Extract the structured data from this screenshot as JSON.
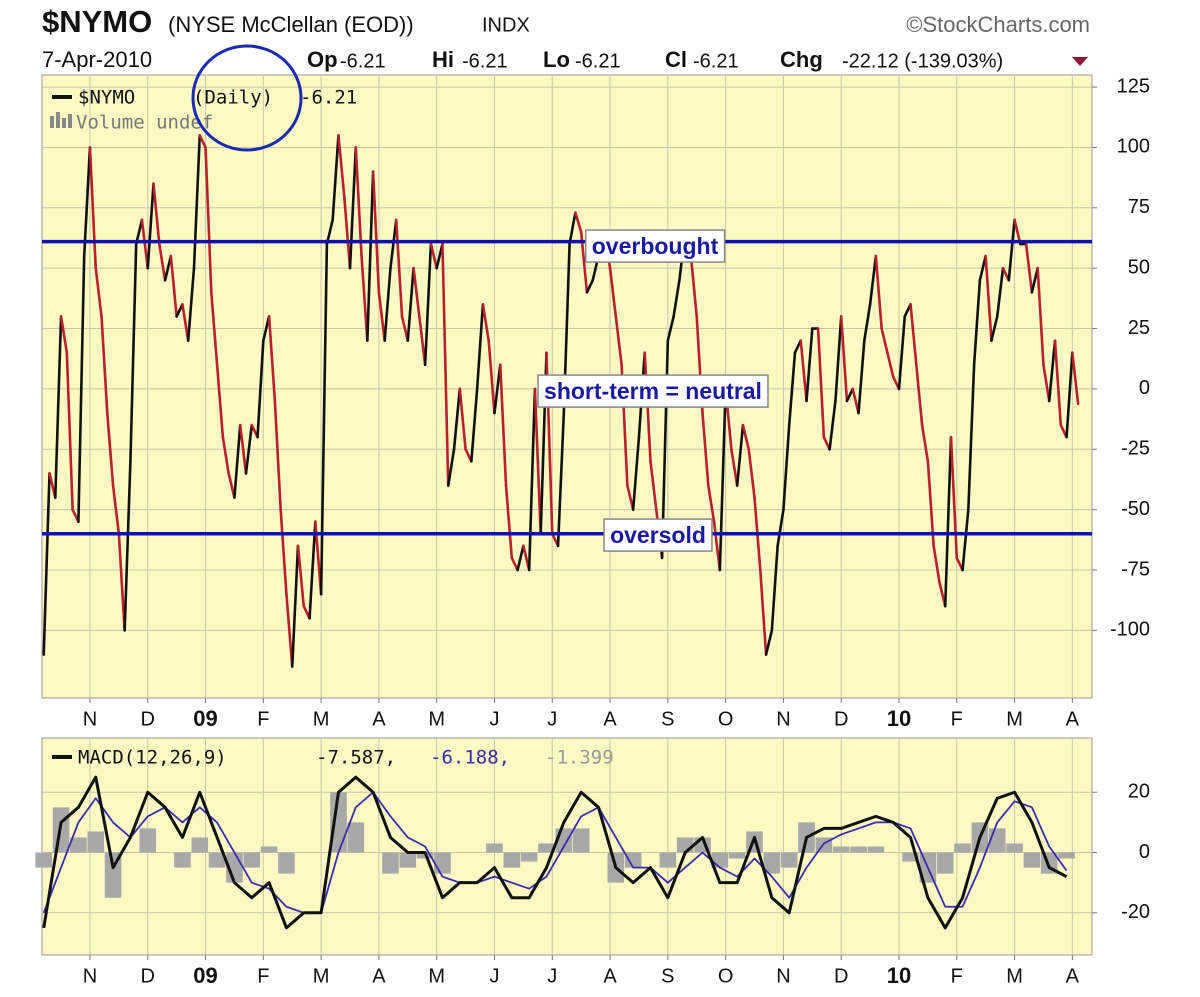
{
  "chart_data": [
    {
      "type": "line",
      "title": "$NYMO",
      "subtitle": "(NYSE McClellan (EOD))",
      "exchange": "INDX",
      "source": "©StockCharts.com",
      "date": "7-Apr-2010",
      "quote": [
        {
          "label": "Op",
          "value": "-6.21"
        },
        {
          "label": "Hi",
          "value": "-6.21"
        },
        {
          "label": "Lo",
          "value": "-6.21"
        },
        {
          "label": "Cl",
          "value": "-6.21"
        },
        {
          "label": "Chg",
          "value": "-22.12 (-139.03%)"
        }
      ],
      "legend": {
        "symbol": "$NYMO",
        "period": "(Daily)",
        "last": "-6.21",
        "volume": "Volume undef"
      },
      "xlim": [
        0.17,
        18.34
      ],
      "xticks": [
        {
          "value": 1,
          "label": "N"
        },
        {
          "value": 2,
          "label": "D"
        },
        {
          "value": 3,
          "label": "09"
        },
        {
          "value": 4,
          "label": "F"
        },
        {
          "value": 5,
          "label": "M"
        },
        {
          "value": 6,
          "label": "A"
        },
        {
          "value": 7,
          "label": "M"
        },
        {
          "value": 8,
          "label": "J"
        },
        {
          "value": 9,
          "label": "J"
        },
        {
          "value": 10,
          "label": "A"
        },
        {
          "value": 11,
          "label": "S"
        },
        {
          "value": 12,
          "label": "O"
        },
        {
          "value": 13,
          "label": "N"
        },
        {
          "value": 14,
          "label": "D"
        },
        {
          "value": 15,
          "label": "10"
        },
        {
          "value": 16,
          "label": "F"
        },
        {
          "value": 17,
          "label": "M"
        },
        {
          "value": 18,
          "label": "A"
        }
      ],
      "ylim": [
        -128,
        130
      ],
      "yticks": [
        125,
        100,
        75,
        50,
        25,
        0,
        -25,
        -50,
        -75,
        -100
      ],
      "grid": true,
      "up_color": "#111111",
      "down_color": "#b8202a",
      "hlines": [
        {
          "y": 61,
          "label": "overbought"
        },
        {
          "y": -60,
          "label": "oversold"
        }
      ],
      "annotation": "short-term = neutral",
      "x": [
        0.2,
        0.3,
        0.4,
        0.5,
        0.6,
        0.7,
        0.8,
        0.9,
        1.0,
        1.1,
        1.2,
        1.3,
        1.4,
        1.5,
        1.6,
        1.7,
        1.8,
        1.9,
        2.0,
        2.1,
        2.2,
        2.3,
        2.4,
        2.5,
        2.6,
        2.7,
        2.8,
        2.9,
        3.0,
        3.1,
        3.2,
        3.3,
        3.4,
        3.5,
        3.6,
        3.7,
        3.8,
        3.9,
        4.0,
        4.1,
        4.2,
        4.3,
        4.4,
        4.5,
        4.6,
        4.7,
        4.8,
        4.9,
        5.0,
        5.1,
        5.2,
        5.3,
        5.4,
        5.5,
        5.6,
        5.7,
        5.8,
        5.9,
        6.0,
        6.1,
        6.2,
        6.3,
        6.4,
        6.5,
        6.6,
        6.7,
        6.8,
        6.9,
        7.0,
        7.1,
        7.2,
        7.3,
        7.4,
        7.5,
        7.6,
        7.7,
        7.8,
        7.9,
        8.0,
        8.1,
        8.2,
        8.3,
        8.4,
        8.5,
        8.6,
        8.7,
        8.8,
        8.9,
        9.0,
        9.1,
        9.2,
        9.3,
        9.4,
        9.5,
        9.6,
        9.7,
        9.8,
        9.9,
        10.0,
        10.1,
        10.2,
        10.3,
        10.4,
        10.5,
        10.6,
        10.7,
        10.8,
        10.9,
        11.0,
        11.1,
        11.2,
        11.3,
        11.4,
        11.5,
        11.6,
        11.7,
        11.8,
        11.9,
        12.0,
        12.1,
        12.2,
        12.3,
        12.4,
        12.5,
        12.6,
        12.7,
        12.8,
        12.9,
        13.0,
        13.1,
        13.2,
        13.3,
        13.4,
        13.5,
        13.6,
        13.7,
        13.8,
        13.9,
        14.0,
        14.1,
        14.2,
        14.3,
        14.4,
        14.5,
        14.6,
        14.7,
        14.8,
        14.9,
        15.0,
        15.1,
        15.2,
        15.3,
        15.4,
        15.5,
        15.6,
        15.7,
        15.8,
        15.9,
        16.0,
        16.1,
        16.2,
        16.3,
        16.4,
        16.5,
        16.6,
        16.7,
        16.8,
        16.9,
        17.0,
        17.1,
        17.2,
        17.3,
        17.4,
        17.5,
        17.6,
        17.7,
        17.8,
        17.9,
        18.0,
        18.1
      ],
      "values": [
        -110,
        -35,
        -45,
        30,
        15,
        -50,
        -55,
        55,
        100,
        50,
        30,
        -10,
        -40,
        -60,
        -100,
        -30,
        60,
        70,
        50,
        85,
        60,
        45,
        55,
        30,
        35,
        20,
        50,
        105,
        100,
        40,
        10,
        -20,
        -35,
        -45,
        -15,
        -35,
        -15,
        -20,
        20,
        30,
        -5,
        -50,
        -85,
        -115,
        -65,
        -90,
        -95,
        -55,
        -85,
        60,
        70,
        105,
        80,
        50,
        100,
        55,
        20,
        90,
        40,
        20,
        50,
        70,
        30,
        20,
        50,
        30,
        10,
        60,
        50,
        60,
        -40,
        -25,
        0,
        -25,
        -30,
        0,
        35,
        20,
        -10,
        10,
        -40,
        -70,
        -75,
        -65,
        -75,
        0,
        -60,
        15,
        -60,
        -65,
        -10,
        60,
        73,
        65,
        40,
        45,
        55,
        65,
        50,
        30,
        10,
        -40,
        -50,
        -20,
        15,
        -30,
        -50,
        -70,
        20,
        30,
        45,
        65,
        55,
        30,
        -10,
        -40,
        -55,
        -75,
        0,
        -25,
        -40,
        -15,
        -25,
        -45,
        -75,
        -110,
        -100,
        -65,
        -50,
        -15,
        15,
        20,
        -5,
        25,
        25,
        -20,
        -25,
        -5,
        30,
        -5,
        0,
        -10,
        20,
        35,
        55,
        25,
        15,
        5,
        0,
        30,
        35,
        10,
        -15,
        -30,
        -65,
        -80,
        -90,
        -20,
        -70,
        -75,
        -50,
        10,
        45,
        55,
        20,
        30,
        50,
        45,
        70,
        60,
        60,
        40,
        50,
        10,
        -5,
        20,
        -15,
        -20,
        15,
        -6.21
      ]
    },
    {
      "type": "macd",
      "legend": {
        "label": "MACD(12,26,9)",
        "macd": "-7.587,",
        "signal": "-6.188,",
        "histogram": "-1.399"
      },
      "xlim": [
        0.17,
        18.34
      ],
      "xticks": [
        {
          "value": 1,
          "label": "N"
        },
        {
          "value": 2,
          "label": "D"
        },
        {
          "value": 3,
          "label": "09"
        },
        {
          "value": 4,
          "label": "F"
        },
        {
          "value": 5,
          "label": "M"
        },
        {
          "value": 6,
          "label": "A"
        },
        {
          "value": 7,
          "label": "M"
        },
        {
          "value": 8,
          "label": "J"
        },
        {
          "value": 9,
          "label": "J"
        },
        {
          "value": 10,
          "label": "A"
        },
        {
          "value": 11,
          "label": "S"
        },
        {
          "value": 12,
          "label": "O"
        },
        {
          "value": 13,
          "label": "N"
        },
        {
          "value": 14,
          "label": "D"
        },
        {
          "value": 15,
          "label": "10"
        },
        {
          "value": 16,
          "label": "F"
        },
        {
          "value": 17,
          "label": "M"
        },
        {
          "value": 18,
          "label": "A"
        }
      ],
      "ylim": [
        -34,
        38
      ],
      "yticks": [
        20,
        0,
        -20
      ],
      "grid": true,
      "x": [
        0.2,
        0.5,
        0.8,
        1.1,
        1.4,
        1.7,
        2.0,
        2.3,
        2.6,
        2.9,
        3.2,
        3.5,
        3.8,
        4.1,
        4.4,
        4.7,
        5.0,
        5.3,
        5.6,
        5.9,
        6.2,
        6.5,
        6.8,
        7.1,
        7.4,
        7.7,
        8.0,
        8.3,
        8.6,
        8.9,
        9.2,
        9.5,
        9.8,
        10.1,
        10.4,
        10.7,
        11.0,
        11.3,
        11.6,
        11.9,
        12.2,
        12.5,
        12.8,
        13.1,
        13.4,
        13.7,
        14.0,
        14.3,
        14.6,
        14.9,
        15.2,
        15.5,
        15.8,
        16.1,
        16.4,
        16.7,
        17.0,
        17.3,
        17.6,
        17.9
      ],
      "series": [
        {
          "color": "#111111",
          "values": [
            -25,
            10,
            15,
            25,
            -5,
            5,
            20,
            15,
            5,
            20,
            5,
            -10,
            -15,
            -10,
            -25,
            -20,
            -20,
            20,
            25,
            20,
            5,
            0,
            0,
            -15,
            -10,
            -10,
            -5,
            -15,
            -15,
            -5,
            10,
            20,
            15,
            -5,
            -10,
            -5,
            -15,
            0,
            5,
            -10,
            -10,
            5,
            -15,
            -20,
            5,
            8,
            8,
            10,
            12,
            10,
            5,
            -15,
            -25,
            -15,
            5,
            18,
            20,
            10,
            -5,
            -8
          ]
        },
        {
          "color": "#3a2ab0",
          "values": [
            -20,
            -5,
            10,
            18,
            10,
            5,
            12,
            15,
            10,
            15,
            10,
            0,
            -10,
            -12,
            -18,
            -20,
            -20,
            0,
            15,
            20,
            12,
            5,
            2,
            -8,
            -10,
            -10,
            -8,
            -10,
            -12,
            -8,
            2,
            12,
            15,
            5,
            -5,
            -5,
            -10,
            -5,
            0,
            -5,
            -8,
            -2,
            -8,
            -15,
            -5,
            3,
            6,
            8,
            10,
            10,
            8,
            -5,
            -18,
            -18,
            -5,
            10,
            17,
            15,
            2,
            -6
          ]
        },
        {
          "color": "#a8a8a8",
          "values": [
            -5,
            15,
            5,
            7,
            -15,
            0,
            8,
            0,
            -5,
            5,
            -5,
            -10,
            -5,
            2,
            -7,
            0,
            0,
            20,
            10,
            0,
            -7,
            -5,
            -2,
            -7,
            0,
            0,
            3,
            -5,
            -3,
            3,
            8,
            8,
            0,
            -10,
            -5,
            0,
            -5,
            5,
            5,
            -5,
            -2,
            7,
            -7,
            -5,
            10,
            5,
            2,
            2,
            2,
            0,
            -3,
            -10,
            -7,
            3,
            10,
            8,
            3,
            -5,
            -7,
            -2
          ]
        }
      ]
    }
  ]
}
